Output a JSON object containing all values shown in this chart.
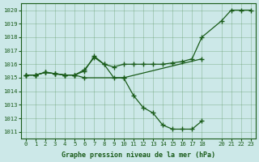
{
  "title": "Graphe pression niveau de la mer (hPa)",
  "bg_color": "#cce8e8",
  "line_color": "#1a5c1a",
  "marker_color": "#1a5c1a",
  "xlim": [
    -0.5,
    23.5
  ],
  "ylim": [
    1010.5,
    1020.5
  ],
  "xticks": [
    0,
    1,
    2,
    3,
    4,
    5,
    6,
    7,
    8,
    9,
    10,
    11,
    12,
    13,
    14,
    15,
    16,
    17,
    18,
    20,
    21,
    22,
    23
  ],
  "yticks": [
    1011,
    1012,
    1013,
    1014,
    1015,
    1016,
    1017,
    1018,
    1019,
    1020
  ],
  "series": [
    {
      "x": [
        0,
        1,
        2,
        3,
        4,
        5,
        6,
        7,
        8,
        9,
        10,
        11,
        12,
        13,
        14,
        15,
        16,
        17,
        18,
        20,
        21,
        22,
        23
      ],
      "y": [
        1015.2,
        1015.2,
        1015.4,
        1015.3,
        1015.2,
        1015.2,
        1015.5,
        1016.6,
        1016.0,
        1015.8,
        1016.0,
        1016.0,
        1016.0,
        1016.0,
        1016.0,
        1016.1,
        1016.2,
        1016.4,
        1018.0,
        1019.2,
        1020.0,
        1020.0,
        1020.0
      ]
    },
    {
      "x": [
        0,
        1,
        2,
        3,
        4,
        5,
        6,
        7,
        8,
        9,
        10,
        18
      ],
      "y": [
        1015.2,
        1015.2,
        1015.4,
        1015.3,
        1015.2,
        1015.2,
        1015.6,
        1016.5,
        1016.0,
        1015.0,
        1015.0,
        1016.4
      ]
    },
    {
      "x": [
        0,
        1,
        2,
        3,
        4,
        5,
        6,
        10,
        11,
        12,
        13,
        14,
        15,
        16,
        17,
        18
      ],
      "y": [
        1015.2,
        1015.2,
        1015.4,
        1015.3,
        1015.2,
        1015.2,
        1015.0,
        1015.0,
        1013.7,
        1012.8,
        1012.4,
        1011.5,
        1011.2,
        1011.2,
        1011.2,
        1011.8
      ]
    }
  ]
}
